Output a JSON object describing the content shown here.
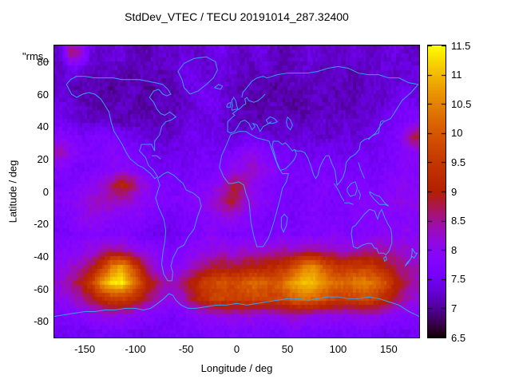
{
  "title": "StdDev_VTEC / TECU 20191014_287.32400",
  "key_label": "\"rms_",
  "axes": {
    "xlabel": "Longitude / deg",
    "ylabel": "Latitude / deg",
    "x_ticks": [
      -150,
      -100,
      -50,
      0,
      50,
      100,
      150
    ],
    "y_ticks": [
      80,
      60,
      40,
      20,
      0,
      -20,
      -40,
      -60,
      -80
    ],
    "xlim": [
      -180,
      180
    ],
    "ylim": [
      -90,
      90
    ]
  },
  "colorbar": {
    "ticks": [
      6.5,
      7,
      7.5,
      8,
      8.5,
      9,
      9.5,
      10,
      10.5,
      11,
      11.5
    ],
    "min": 6.5,
    "max": 11.5
  },
  "colors": {
    "background": "#ffffff",
    "text": "#000000",
    "border": "#000000",
    "coastline": "#399ff2"
  },
  "chart_data": {
    "type": "heatmap",
    "title": "StdDev_VTEC / TECU 20191014_287.32400",
    "xlabel": "Longitude / deg",
    "ylabel": "Latitude / deg",
    "value_units": "TECU",
    "zlim": [
      6.5,
      11.5
    ],
    "palette": "gnuplot pm3d default: R=sqrt(f), G=f^3, B=max(0,sin(2*pi*f))",
    "legend_position": "right colorbar",
    "grid": false,
    "overlay": "world coastlines",
    "lon_centers": [
      -175,
      -165,
      -155,
      -145,
      -135,
      -125,
      -115,
      -105,
      -95,
      -85,
      -75,
      -65,
      -55,
      -45,
      -35,
      -25,
      -15,
      -5,
      5,
      15,
      25,
      35,
      45,
      55,
      65,
      75,
      85,
      95,
      105,
      115,
      125,
      135,
      145,
      155,
      165,
      175
    ],
    "lat_centers": [
      85,
      75,
      65,
      55,
      45,
      35,
      25,
      15,
      5,
      -5,
      -15,
      -25,
      -35,
      -45,
      -55,
      -65,
      -75,
      -85
    ],
    "values": [
      [
        7.3,
        8.5,
        8.2,
        7.4,
        7.2,
        7.3,
        7.4,
        7.2,
        7.1,
        7.2,
        7.3,
        7.2,
        7.4,
        7.3,
        7.2,
        7.4,
        7.5,
        7.3,
        7.2,
        7.3,
        7.4,
        7.2,
        7.1,
        7.2,
        7.3,
        7.4,
        7.2,
        7.3,
        7.2,
        7.4,
        7.3,
        7.2,
        7.3,
        7.4,
        7.3,
        7.2
      ],
      [
        7.2,
        7.4,
        7.3,
        7.1,
        7.2,
        7.3,
        7.1,
        7.0,
        7.2,
        7.3,
        7.1,
        7.2,
        7.4,
        7.5,
        7.3,
        7.2,
        7.4,
        7.3,
        7.2,
        7.1,
        7.3,
        7.2,
        7.1,
        7.2,
        7.3,
        7.2,
        7.1,
        7.3,
        7.2,
        7.1,
        7.2,
        7.3,
        7.4,
        7.2,
        7.3,
        7.4
      ],
      [
        7.3,
        7.2,
        7.1,
        7.2,
        7.1,
        7.0,
        7.1,
        7.2,
        7.1,
        7.0,
        7.2,
        7.1,
        7.3,
        7.4,
        7.6,
        7.4,
        7.3,
        7.2,
        7.1,
        7.2,
        7.1,
        7.0,
        7.1,
        7.2,
        7.1,
        7.2,
        7.3,
        7.1,
        7.2,
        7.1,
        7.2,
        7.3,
        7.2,
        7.4,
        7.5,
        7.3
      ],
      [
        7.4,
        7.3,
        7.2,
        7.1,
        7.0,
        7.1,
        7.2,
        7.1,
        7.0,
        7.1,
        7.2,
        7.1,
        7.2,
        7.3,
        7.5,
        7.6,
        7.4,
        7.2,
        7.1,
        7.0,
        7.1,
        7.2,
        7.1,
        7.0,
        7.1,
        7.2,
        7.1,
        7.2,
        7.1,
        7.2,
        7.3,
        7.2,
        7.3,
        7.5,
        7.6,
        7.5
      ],
      [
        7.5,
        7.4,
        7.3,
        7.2,
        7.3,
        7.2,
        7.1,
        7.2,
        7.1,
        7.2,
        7.1,
        7.2,
        7.3,
        7.4,
        7.3,
        7.4,
        7.3,
        7.2,
        7.1,
        7.2,
        7.1,
        7.2,
        7.3,
        7.2,
        7.1,
        7.2,
        7.3,
        7.2,
        7.3,
        7.2,
        7.3,
        7.4,
        7.5,
        7.6,
        7.7,
        7.8
      ],
      [
        7.9,
        7.8,
        7.6,
        7.7,
        7.8,
        7.7,
        7.6,
        7.5,
        7.4,
        7.3,
        7.2,
        7.3,
        7.4,
        7.5,
        7.4,
        7.5,
        7.4,
        7.3,
        7.4,
        7.5,
        7.4,
        7.3,
        7.2,
        7.3,
        7.4,
        7.3,
        7.2,
        7.3,
        7.4,
        7.3,
        7.4,
        7.5,
        7.6,
        7.7,
        8.2,
        8.8
      ],
      [
        8.4,
        8.0,
        7.8,
        7.7,
        7.8,
        7.9,
        7.8,
        7.7,
        7.6,
        7.5,
        7.4,
        7.5,
        7.4,
        7.5,
        7.6,
        7.5,
        7.6,
        7.7,
        7.9,
        8.0,
        7.9,
        7.7,
        7.6,
        7.5,
        7.4,
        7.5,
        7.6,
        7.5,
        7.4,
        7.5,
        7.6,
        7.5,
        7.6,
        7.7,
        7.8,
        8.0
      ],
      [
        7.8,
        7.7,
        7.6,
        7.7,
        7.8,
        7.9,
        8.0,
        7.9,
        7.8,
        7.6,
        7.5,
        7.6,
        7.5,
        7.6,
        7.7,
        7.6,
        7.8,
        8.0,
        8.2,
        8.3,
        8.1,
        7.9,
        7.7,
        7.6,
        7.7,
        7.6,
        7.7,
        7.6,
        7.7,
        7.6,
        7.7,
        7.6,
        7.7,
        7.8,
        7.9,
        7.8
      ],
      [
        7.7,
        7.8,
        7.9,
        8.0,
        8.2,
        8.6,
        9.1,
        8.8,
        8.2,
        7.9,
        7.8,
        7.7,
        7.6,
        7.7,
        7.8,
        7.9,
        8.2,
        8.8,
        8.6,
        8.0,
        7.8,
        7.7,
        7.6,
        7.7,
        7.6,
        7.7,
        7.8,
        7.7,
        7.6,
        7.7,
        7.8,
        7.7,
        7.8,
        7.9,
        8.0,
        7.9
      ],
      [
        7.8,
        7.9,
        8.0,
        8.2,
        8.3,
        8.4,
        8.3,
        8.2,
        8.0,
        7.9,
        7.8,
        7.7,
        7.8,
        7.9,
        8.0,
        8.2,
        8.6,
        8.9,
        8.3,
        8.0,
        7.9,
        7.8,
        7.7,
        7.6,
        7.7,
        7.8,
        7.7,
        7.6,
        7.7,
        7.8,
        7.9,
        7.8,
        7.9,
        8.0,
        8.1,
        8.0
      ],
      [
        7.7,
        7.8,
        8.0,
        8.1,
        8.0,
        7.9,
        7.8,
        7.9,
        7.8,
        7.7,
        7.6,
        7.5,
        7.6,
        7.7,
        7.8,
        7.9,
        8.0,
        8.1,
        7.9,
        7.8,
        7.7,
        7.6,
        7.7,
        7.6,
        7.7,
        7.8,
        7.7,
        7.8,
        7.7,
        7.8,
        7.9,
        7.8,
        7.9,
        7.8,
        7.9,
        7.8
      ],
      [
        7.6,
        7.7,
        7.8,
        7.9,
        7.8,
        7.7,
        7.8,
        7.7,
        7.6,
        7.5,
        7.4,
        7.5,
        7.6,
        7.7,
        7.8,
        7.9,
        7.8,
        7.7,
        7.8,
        7.7,
        7.6,
        7.7,
        7.8,
        7.7,
        7.8,
        7.7,
        7.8,
        7.9,
        7.8,
        7.7,
        7.8,
        7.9,
        8.0,
        7.9,
        8.0,
        7.9
      ],
      [
        7.8,
        7.9,
        8.0,
        8.1,
        8.3,
        8.5,
        8.4,
        8.2,
        8.0,
        7.9,
        7.8,
        7.7,
        7.8,
        7.9,
        8.0,
        8.1,
        8.2,
        8.1,
        8.2,
        8.3,
        8.2,
        8.3,
        8.4,
        8.3,
        8.4,
        8.5,
        8.4,
        8.3,
        8.2,
        8.3,
        8.4,
        8.5,
        8.4,
        8.3,
        8.2,
        8.1
      ],
      [
        8.0,
        8.2,
        8.4,
        8.8,
        9.4,
        10.4,
        10.8,
        10.0,
        9.0,
        8.2,
        8.0,
        7.9,
        8.0,
        8.3,
        8.6,
        8.8,
        8.9,
        8.8,
        8.9,
        9.0,
        9.1,
        9.2,
        9.4,
        9.8,
        10.4,
        10.6,
        10.0,
        9.6,
        9.4,
        9.5,
        9.6,
        9.4,
        9.0,
        8.7,
        8.5,
        8.3
      ],
      [
        8.2,
        8.5,
        8.9,
        9.6,
        10.6,
        11.3,
        11.4,
        10.6,
        9.6,
        8.9,
        8.5,
        8.4,
        8.6,
        9.0,
        9.5,
        9.8,
        9.9,
        9.8,
        10.0,
        10.2,
        10.1,
        10.0,
        10.3,
        10.8,
        11.1,
        11.0,
        10.6,
        10.3,
        10.2,
        10.4,
        10.5,
        10.3,
        9.9,
        9.1,
        8.7,
        8.4
      ],
      [
        8.0,
        8.2,
        8.4,
        8.8,
        9.2,
        9.6,
        9.7,
        9.4,
        8.9,
        8.5,
        8.2,
        8.1,
        8.3,
        8.8,
        9.3,
        9.6,
        9.7,
        9.6,
        9.7,
        9.8,
        9.7,
        9.6,
        9.8,
        10.1,
        10.3,
        10.2,
        9.9,
        9.7,
        9.6,
        9.7,
        9.8,
        9.6,
        9.2,
        8.8,
        8.4,
        8.2
      ],
      [
        7.7,
        7.8,
        7.9,
        8.0,
        8.1,
        8.2,
        8.1,
        8.0,
        7.9,
        7.8,
        7.7,
        7.6,
        7.7,
        7.9,
        8.0,
        8.1,
        8.2,
        8.1,
        8.2,
        8.1,
        8.0,
        8.1,
        8.2,
        8.3,
        8.2,
        8.1,
        8.0,
        8.1,
        8.0,
        8.1,
        8.2,
        8.1,
        8.0,
        7.9,
        7.8,
        7.7
      ],
      [
        7.5,
        7.6,
        7.5,
        7.6,
        7.7,
        7.6,
        7.7,
        7.6,
        7.5,
        7.6,
        7.5,
        7.6,
        7.7,
        7.6,
        7.7,
        7.8,
        7.7,
        7.8,
        7.7,
        7.8,
        7.7,
        7.6,
        7.7,
        7.8,
        7.7,
        7.6,
        7.7,
        7.6,
        7.7,
        7.6,
        7.7,
        7.6,
        7.5,
        7.6,
        7.5,
        7.6
      ]
    ]
  },
  "basemap": {
    "name": "world coastlines (simplified, lon/lat polylines)",
    "polylines": [
      "-168,66;-163,60;-158,58;-152,60;-146,61;-140,60;-134,57;-130,53;-126,49;-124,43;-121,37;-117,33;-113,29;-109,24;-105,20;-97,16;-93,15;-89,13;-85,11;-81,8;-78,9;-82,13;-87,16;-90,21;-96,25;-94,29;-89,29;-84,29;-81,25;-81,31;-76,35;-74,40;-70,43;-65,44;-60,46;-66,49;-71,47;-75,48;-79,51;-82,55;-86,58;-82,62;-77,63;-73,60;-69,59;-65,60;-68,63;-73,66;-80,67;-88,68;-96,69;-105,69;-113,69;-122,70;-130,70;-140,70;-150,71;-158,71;-164,69;-168,66",
      "-46,60;-52,64;-54,69;-58,74;-52,79;-42,82;-30,83;-21,80;-19,75;-23,70;-30,66;-38,62;-46,60",
      "-78,8;-76,4;-78,0;-80,-4;-77,-10;-72,-17;-70,-24;-71,-31;-73,-38;-74,-45;-72,-51;-68,-55;-64,-55;-63,-50;-65,-46;-63,-41;-58,-35;-52,-33;-48,-28;-42,-23;-39,-16;-35,-9;-37,-4;-43,-1;-50,1;-53,5;-57,7;-62,10;-68,12;-72,11;-76,9;-78,8",
      "-6,35;-10,29;-15,22;-17,15;-13,9;-8,5;-4,5;2,6;7,4;9,-1;12,-6;13,-12;14,-19;17,-28;20,-34;26,-34;31,-29;34,-24;37,-18;40,-11;43,-4;45,2;49,6;51,11;45,11;41,15;38,20;34,27;32,31;27,32;20,33;14,35;9,37;2,37;-6,35",
      "-9,43;-9,37;-6,36;-2,37;1,40;4,43;8,44;12,42;15,38;18,40;16,42;20,41;23,37;26,40;29,41;34,43",
      "-9,43;-4,46;-2,47;-4,48;0,50;3,51;6,53;9,54;8,57;10,58;12,56;17,55;21,56;25,58;28,60",
      "5,58;6,61;10,64;15,68;20,70;26,71;30,70",
      "-5,50;-4,53;-5,56;-3,58;-1,56;0,53;1,51;-5,50",
      "-10,52;-9,54;-6,55;-6,52;-10,52",
      "-22,64;-18,66;-14,65;-16,63;-22,64",
      "30,70;40,72;50,73;60,73;70,73;80,74;90,76;100,77;110,76;120,73;130,72;140,72;150,70;160,70;170,67;179,66",
      "179,66;172,61;163,56;158,51;152,45;145,43;141,40;137,36;131,33;126,32;122,30;121,26;117,23;112,21;108,18;107,13;105,9;102,6;99,4;98,8;97,13;94,17;91,22;88,22;85,19;82,15;80,10;78,8;76,10;73,16;70,21;67,24;63,25;59,25;57,26",
      "57,26;55,25;51,28;48,30;45,29;41,31;36,31;35,28;37,24;39,19;43,13;48,14;53,17;57,20;59,23;57,26",
      "50,46;53,44;55,41;53,38;50,40;49,43;50,46",
      "29,44;33,46;37,45;40,43;36,42;31,42;29,44",
      "96,5;100,1;103,-3;106,-6",
      "106,-7;111,-7;115,-8",
      "109,2;113,5;117,6;119,2;117,-2;112,-3;109,0;109,2",
      "120,1;122,-2;121,-5",
      "131,0;136,-2;141,-3;146,-7;150,-9;146,-8;141,-8;136,-5;132,-2;131,0",
      "120,18;122,14;124,11;126,8",
      "130,32;133,34;136,35;140,36;141,40;142,43;145,44",
      "114,-22;113,-26;115,-34;119,-35;124,-33;129,-32;133,-32;136,-35;138,-35;140,-38;145,-38;147,-39;150,-37;153,-32;153,-27;152,-23;149,-20;146,-16;143,-11;141,-13;139,-17;136,-12;131,-11;126,-14;122,-17;117,-21;114,-22",
      "145,-41;147,-40;148,-42;146,-43;145,-41",
      "173,-35;176,-38;178,-38;175,-41;173,-40;171,-42;168,-44;166,-46;169,-44;172,-41;173,-38;173,-35",
      "44,-16;47,-14;50,-16;49,-21;46,-25;44,-22;44,-16",
      "-84,22;-79,22;-75,20",
      "-180,-77;-170,-76;-160,-75;-150,-74;-140,-74;-130,-73;-120,-73;-110,-72;-100,-72;-92,-73;-85,-72;-78,-69;-72,-66;-67,-63;-63,-64;-60,-67;-55,-70;-48,-72;-40,-72;-30,-71;-20,-70;-10,-70;0,-69;10,-70;20,-69;30,-68;40,-67;50,-66;60,-66;70,-67;80,-66;90,-65;100,-65;110,-66;120,-66;130,-65;140,-66;150,-68;160,-70;170,-74;180,-77"
    ]
  }
}
